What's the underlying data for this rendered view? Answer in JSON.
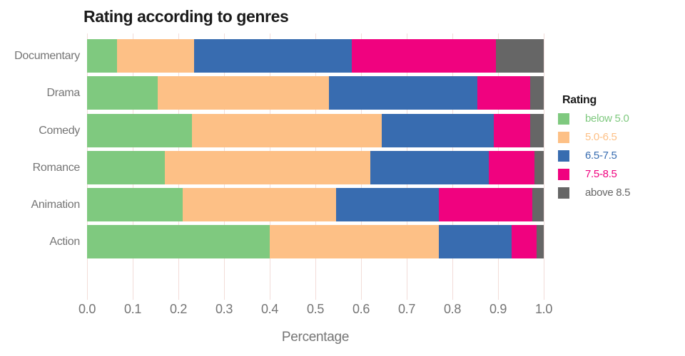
{
  "title": "Rating according to genres",
  "x_axis": {
    "label": "Percentage",
    "tick_values": [
      0.0,
      0.1,
      0.2,
      0.3,
      0.4,
      0.5,
      0.6,
      0.7,
      0.8,
      0.9,
      1.0
    ],
    "tick_labels": [
      "0.0",
      "0.1",
      "0.2",
      "0.3",
      "0.4",
      "0.5",
      "0.6",
      "0.7",
      "0.8",
      "0.9",
      "1.0"
    ]
  },
  "legend": {
    "title": "Rating",
    "entries": [
      {
        "label": "below 5.0",
        "color": "#7fc97f"
      },
      {
        "label": "5.0-6.5",
        "color": "#fdc086"
      },
      {
        "label": "6.5-7.5",
        "color": "#386cb0"
      },
      {
        "label": "7.5-8.5",
        "color": "#f0027f"
      },
      {
        "label": "above 8.5",
        "color": "#666666"
      }
    ]
  },
  "chart_data": {
    "type": "bar",
    "orientation": "horizontal",
    "stacked": true,
    "title": "Rating according to genres",
    "xlabel": "Percentage",
    "ylabel": "",
    "xlim": [
      0.0,
      1.0
    ],
    "grid": true,
    "gridline_color": "#f2dcd8",
    "legend_position": "right",
    "categories": [
      "Documentary",
      "Drama",
      "Comedy",
      "Romance",
      "Animation",
      "Action"
    ],
    "series": [
      {
        "name": "below 5.0",
        "color": "#7fc97f",
        "values": [
          0.065,
          0.155,
          0.23,
          0.17,
          0.21,
          0.4
        ]
      },
      {
        "name": "5.0-6.5",
        "color": "#fdc086",
        "values": [
          0.17,
          0.375,
          0.415,
          0.45,
          0.335,
          0.37
        ]
      },
      {
        "name": "6.5-7.5",
        "color": "#386cb0",
        "values": [
          0.345,
          0.325,
          0.245,
          0.26,
          0.225,
          0.16
        ]
      },
      {
        "name": "7.5-8.5",
        "color": "#f0027f",
        "values": [
          0.315,
          0.115,
          0.08,
          0.1,
          0.205,
          0.055
        ]
      },
      {
        "name": "above 8.5",
        "color": "#666666",
        "values": [
          0.105,
          0.03,
          0.03,
          0.02,
          0.025,
          0.015
        ]
      }
    ]
  }
}
